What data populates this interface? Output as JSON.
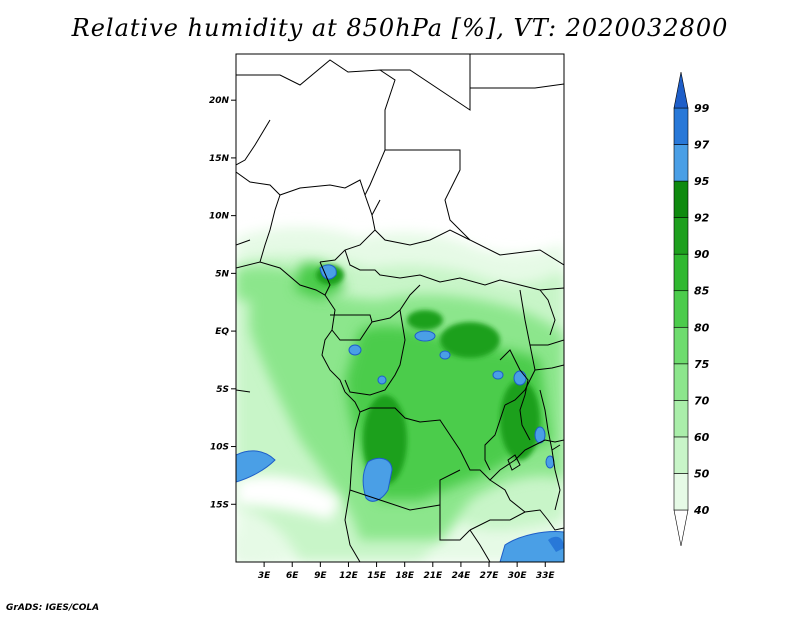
{
  "title": "Relative humidity at 850hPa [%], VT: 2020032800",
  "footer": "GrADS: IGES/COLA",
  "map": {
    "lon_range": [
      0,
      35
    ],
    "lat_range": [
      -20,
      24
    ],
    "lon_ticks": [
      {
        "value": 3,
        "label": "3E"
      },
      {
        "value": 6,
        "label": "6E"
      },
      {
        "value": 9,
        "label": "9E"
      },
      {
        "value": 12,
        "label": "12E"
      },
      {
        "value": 15,
        "label": "15E"
      },
      {
        "value": 18,
        "label": "18E"
      },
      {
        "value": 21,
        "label": "21E"
      },
      {
        "value": 24,
        "label": "24E"
      },
      {
        "value": 27,
        "label": "27E"
      },
      {
        "value": 30,
        "label": "30E"
      },
      {
        "value": 33,
        "label": "33E"
      }
    ],
    "lat_ticks": [
      {
        "value": 20,
        "label": "20N"
      },
      {
        "value": 15,
        "label": "15N"
      },
      {
        "value": 10,
        "label": "10N"
      },
      {
        "value": 5,
        "label": "5N"
      },
      {
        "value": 0,
        "label": "EQ"
      },
      {
        "value": -5,
        "label": "5S"
      },
      {
        "value": -10,
        "label": "10S"
      },
      {
        "value": -15,
        "label": "15S"
      }
    ]
  },
  "colorbar": {
    "levels": [
      "40",
      "50",
      "60",
      "70",
      "75",
      "80",
      "85",
      "90",
      "92",
      "95",
      "97",
      "99"
    ],
    "colors": [
      "#ffffff",
      "#e6fae6",
      "#c8f5c8",
      "#aaeeaa",
      "#8ce68c",
      "#6edc6e",
      "#4ccc4c",
      "#30b830",
      "#1ea01e",
      "#0f8a0f",
      "#4a9fe6",
      "#2878d8",
      "#1e5ec8"
    ]
  },
  "colors": {
    "land_fill": "#ffffff",
    "border": "#000000"
  }
}
